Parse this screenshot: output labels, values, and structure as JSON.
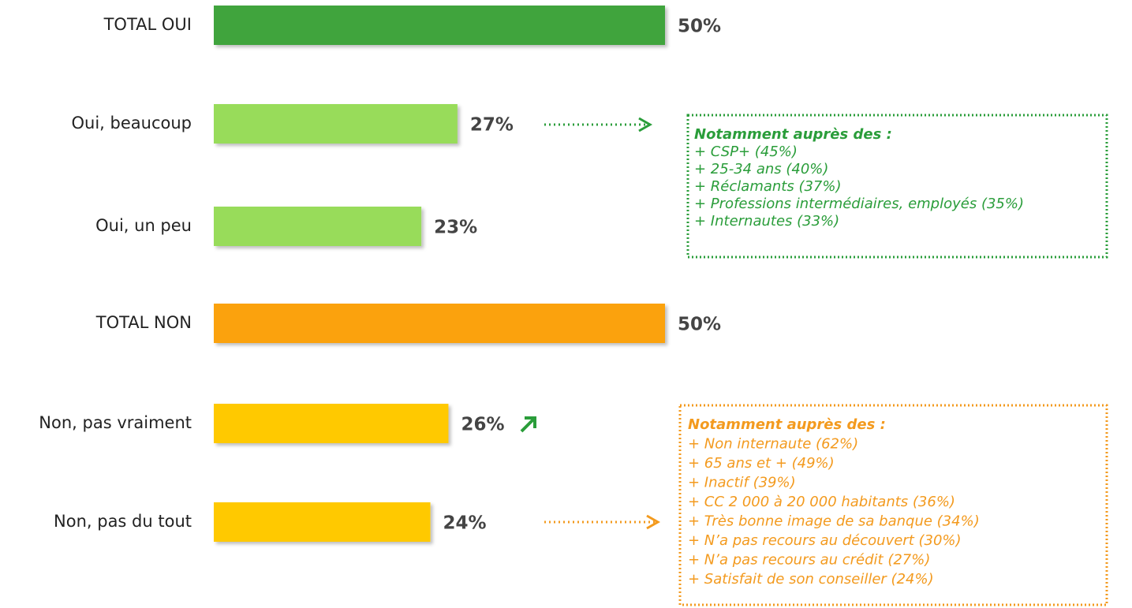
{
  "chart_data": {
    "type": "bar",
    "categories": [
      "TOTAL OUI",
      "Oui, beaucoup",
      "Oui, un peu",
      "TOTAL NON",
      "Non, pas vraiment",
      "Non, pas du tout"
    ],
    "values": [
      50,
      27,
      23,
      50,
      26,
      24
    ],
    "value_labels": [
      "50%",
      "27%",
      "23%",
      "50%",
      "26%",
      "24%"
    ],
    "colors": [
      "#3fa43c",
      "#98dc5a",
      "#98dc5a",
      "#fba20a",
      "#ffc905",
      "#ffc905"
    ],
    "annotations": [
      {
        "color": "#2a9d3a",
        "title": "Notamment auprès des :",
        "items": [
          "+ CSP+ (45%)",
          "+ 25-34 ans (40%)",
          "+ Réclamants (37%)",
          "+ Professions intermédiaires, employés (35%)",
          "+ Internautes (33%)"
        ]
      },
      {
        "color": "#f39a1e",
        "title": "Notamment auprès des :",
        "items": [
          "+ Non internaute (62%)",
          "+ 65 ans et + (49%)",
          "+ Inactif (39%)",
          "+ CC 2 000 à 20 000 habitants (36%)",
          "+ Très bonne image de sa banque (34%)",
          "+ N’a pas recours au découvert (30%)",
          "+ N’a pas recours au crédit (27%)",
          "+ Satisfait de son conseiller (24%)"
        ]
      }
    ]
  }
}
